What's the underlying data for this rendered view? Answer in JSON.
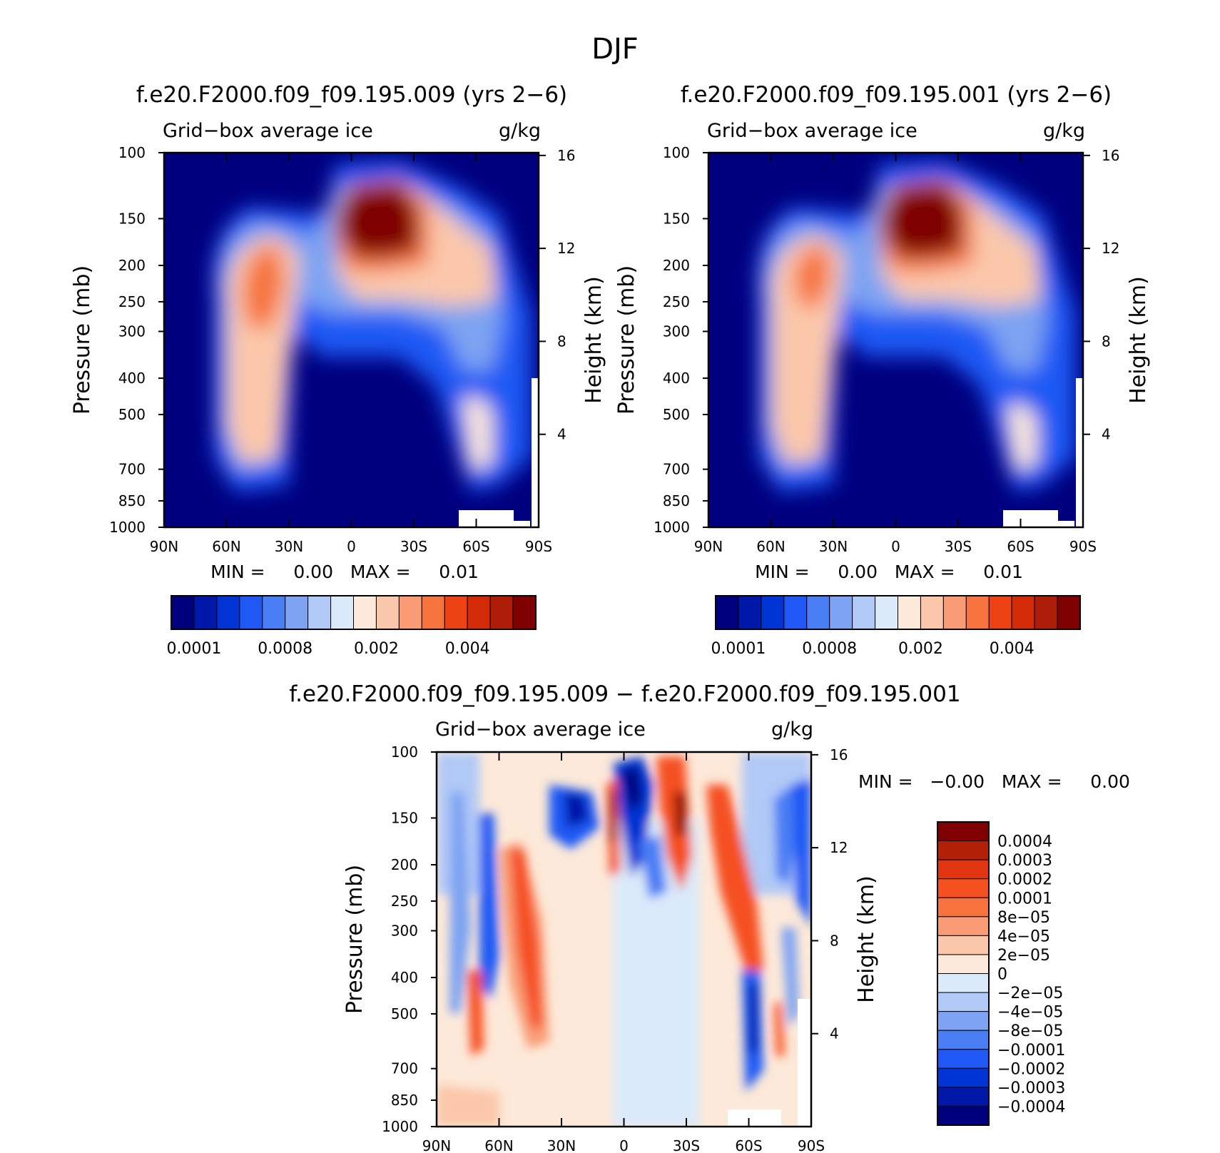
{
  "title": "DJF",
  "chart_data": [
    {
      "type": "heatmap",
      "title": "f.e20.F2000.f09_f09.195.009 (yrs 2−6)",
      "subtitle_left": "Grid−box average ice",
      "subtitle_right": "g/kg",
      "xlabel": "",
      "ylabel": "Pressure (mb)",
      "ylabel_right": "Height (km)",
      "x_ticks": [
        "90N",
        "60N",
        "30N",
        "0",
        "30S",
        "60S",
        "90S"
      ],
      "y_ticks": [
        "100",
        "150",
        "200",
        "250",
        "300",
        "400",
        "500",
        "700",
        "850",
        "1000"
      ],
      "y_right_ticks": [
        "16",
        "12",
        "8",
        "4"
      ],
      "min_max": "MIN =     0.00   MAX =     0.01",
      "colorbar_labels": [
        "0.0001",
        "0.0008",
        "0.002",
        "0.004"
      ],
      "colors": [
        "#00007f",
        "#0018a8",
        "#0034d4",
        "#1f58f4",
        "#4a7ef4",
        "#7da3f2",
        "#b1c9f6",
        "#daeafb",
        "#fde9d9",
        "#fbc7aa",
        "#f99c76",
        "#f6733e",
        "#ec4214",
        "#d32b08",
        "#ae1d08",
        "#7f0000"
      ]
    },
    {
      "type": "heatmap",
      "title": "f.e20.F2000.f09_f09.195.001 (yrs 2−6)",
      "subtitle_left": "Grid−box average ice",
      "subtitle_right": "g/kg",
      "xlabel": "",
      "ylabel": "Pressure (mb)",
      "ylabel_right": "Height (km)",
      "x_ticks": [
        "90N",
        "60N",
        "30N",
        "0",
        "30S",
        "60S",
        "90S"
      ],
      "y_ticks": [
        "100",
        "150",
        "200",
        "250",
        "300",
        "400",
        "500",
        "700",
        "850",
        "1000"
      ],
      "y_right_ticks": [
        "16",
        "12",
        "8",
        "4"
      ],
      "min_max": "MIN =     0.00   MAX =     0.01",
      "colorbar_labels": [
        "0.0001",
        "0.0008",
        "0.002",
        "0.004"
      ],
      "colors": [
        "#00007f",
        "#0018a8",
        "#0034d4",
        "#1f58f4",
        "#4a7ef4",
        "#7da3f2",
        "#b1c9f6",
        "#daeafb",
        "#fde9d9",
        "#fbc7aa",
        "#f99c76",
        "#f6733e",
        "#ec4214",
        "#d32b08",
        "#ae1d08",
        "#7f0000"
      ]
    },
    {
      "type": "heatmap",
      "title": "f.e20.F2000.f09_f09.195.009 − f.e20.F2000.f09_f09.195.001",
      "subtitle_left": "Grid−box average ice",
      "subtitle_right": "g/kg",
      "xlabel": "",
      "ylabel": "Pressure (mb)",
      "ylabel_right": "Height (km)",
      "x_ticks": [
        "90N",
        "60N",
        "30N",
        "0",
        "30S",
        "60S",
        "90S"
      ],
      "y_ticks": [
        "100",
        "150",
        "200",
        "250",
        "300",
        "400",
        "500",
        "700",
        "850",
        "1000"
      ],
      "y_right_ticks": [
        "16",
        "12",
        "8",
        "4"
      ],
      "min_max": "MIN =   −0.00   MAX =     0.00",
      "colorbar_labels": [
        "0.0004",
        "0.0003",
        "0.0002",
        "0.0001",
        "8e−05",
        "4e−05",
        "2e−05",
        "0",
        "−2e−05",
        "−4e−05",
        "−8e−05",
        "−0.0001",
        "−0.0002",
        "−0.0003",
        "−0.0004"
      ],
      "colors": [
        "#7f0000",
        "#b22008",
        "#e03510",
        "#f55020",
        "#f6733e",
        "#f99c76",
        "#fbc7aa",
        "#fde9d9",
        "#daeafb",
        "#b1c9f6",
        "#7da3f2",
        "#4a7ef4",
        "#1f58f4",
        "#0034d4",
        "#0018a8",
        "#00007f"
      ]
    }
  ]
}
